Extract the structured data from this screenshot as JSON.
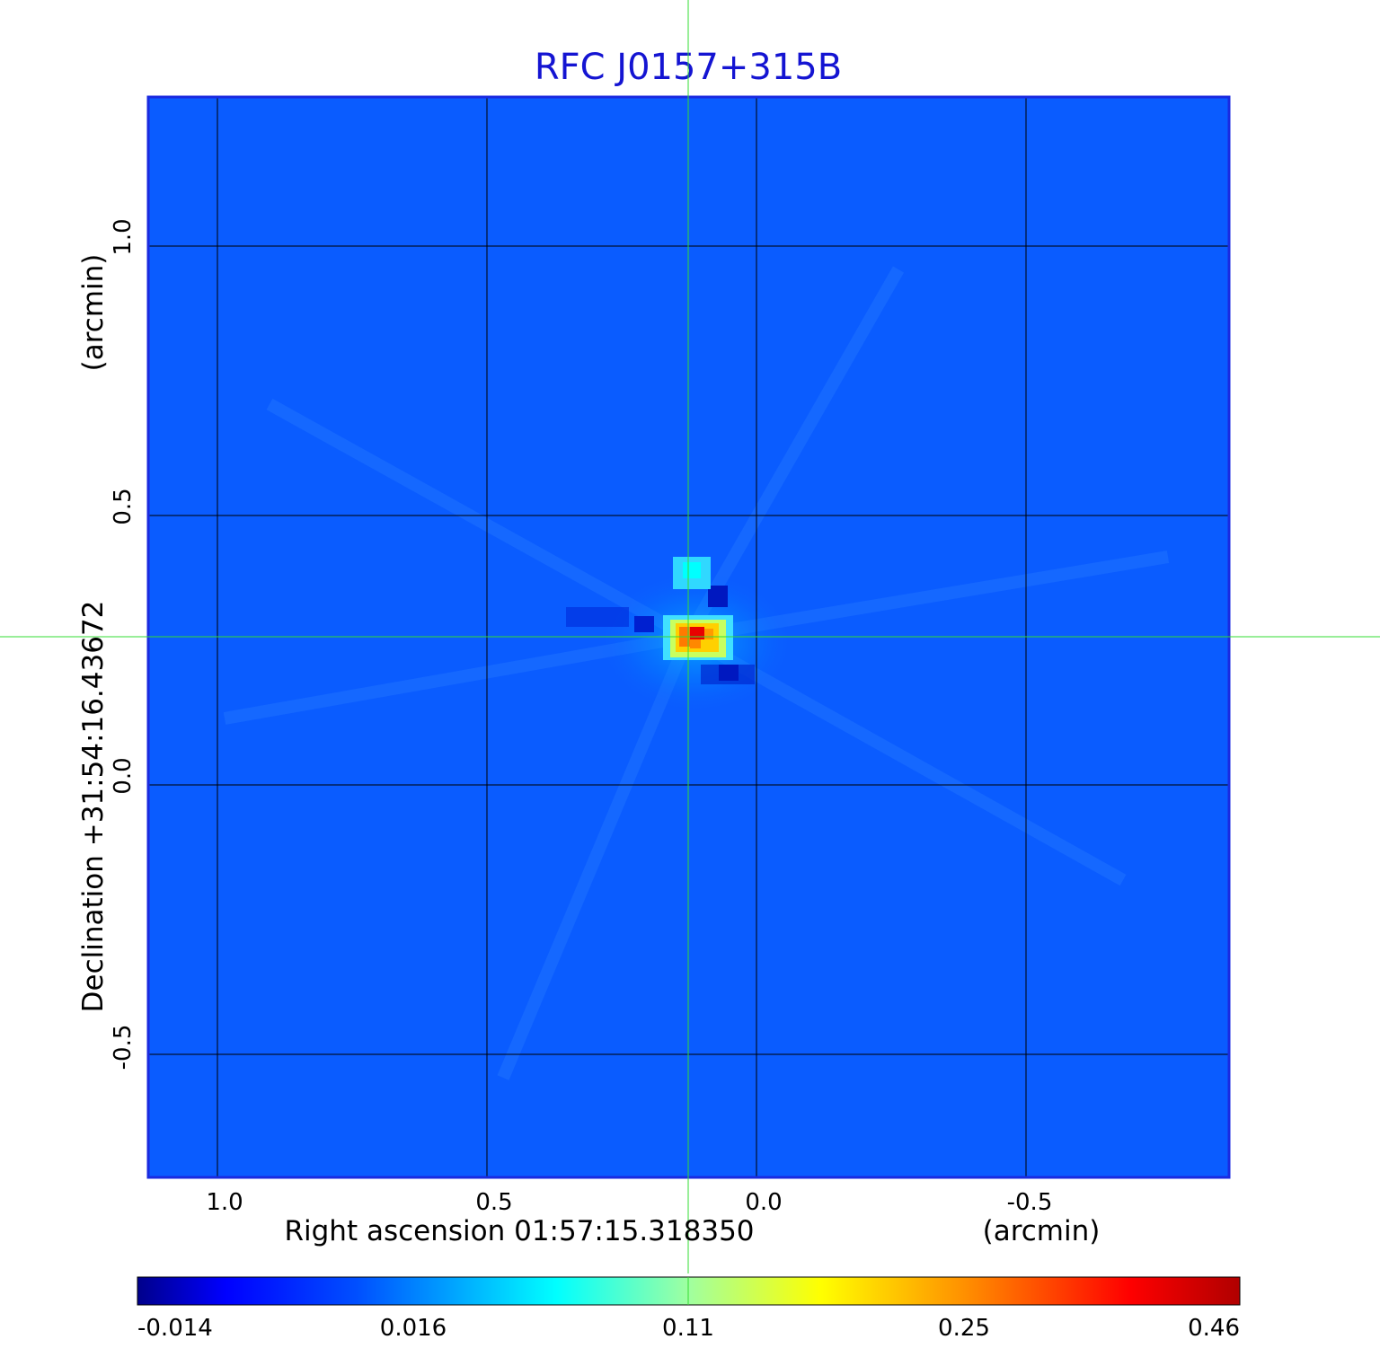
{
  "title": "RFC J0157+315B",
  "x_axis": {
    "label": "Right ascension  01:57:15.318350",
    "unit": "(arcmin)",
    "ticks": [
      "1.0",
      "0.5",
      "0.0",
      "-0.5"
    ]
  },
  "y_axis": {
    "label": "Declination  +31:54:16.43672",
    "unit": "(arcmin)",
    "ticks": [
      "1.0",
      "0.5",
      "0.0",
      "-0.5"
    ]
  },
  "colorbar": {
    "ticks": [
      "-0.014",
      "0.016",
      "0.11",
      "0.25",
      "0.46"
    ],
    "colors": [
      "#00008b",
      "#0000ff",
      "#0060ff",
      "#00ffff",
      "#ffff00",
      "#ff8000",
      "#ff0000",
      "#b40000"
    ]
  },
  "image": {
    "background_color": "#0a5cff",
    "frame_color": "#1a2ae0",
    "grid_color": "#000000",
    "crosshair_color": "#33dd33",
    "source": "compact source near RA 0.12, Dec 0.28 arcmin"
  }
}
